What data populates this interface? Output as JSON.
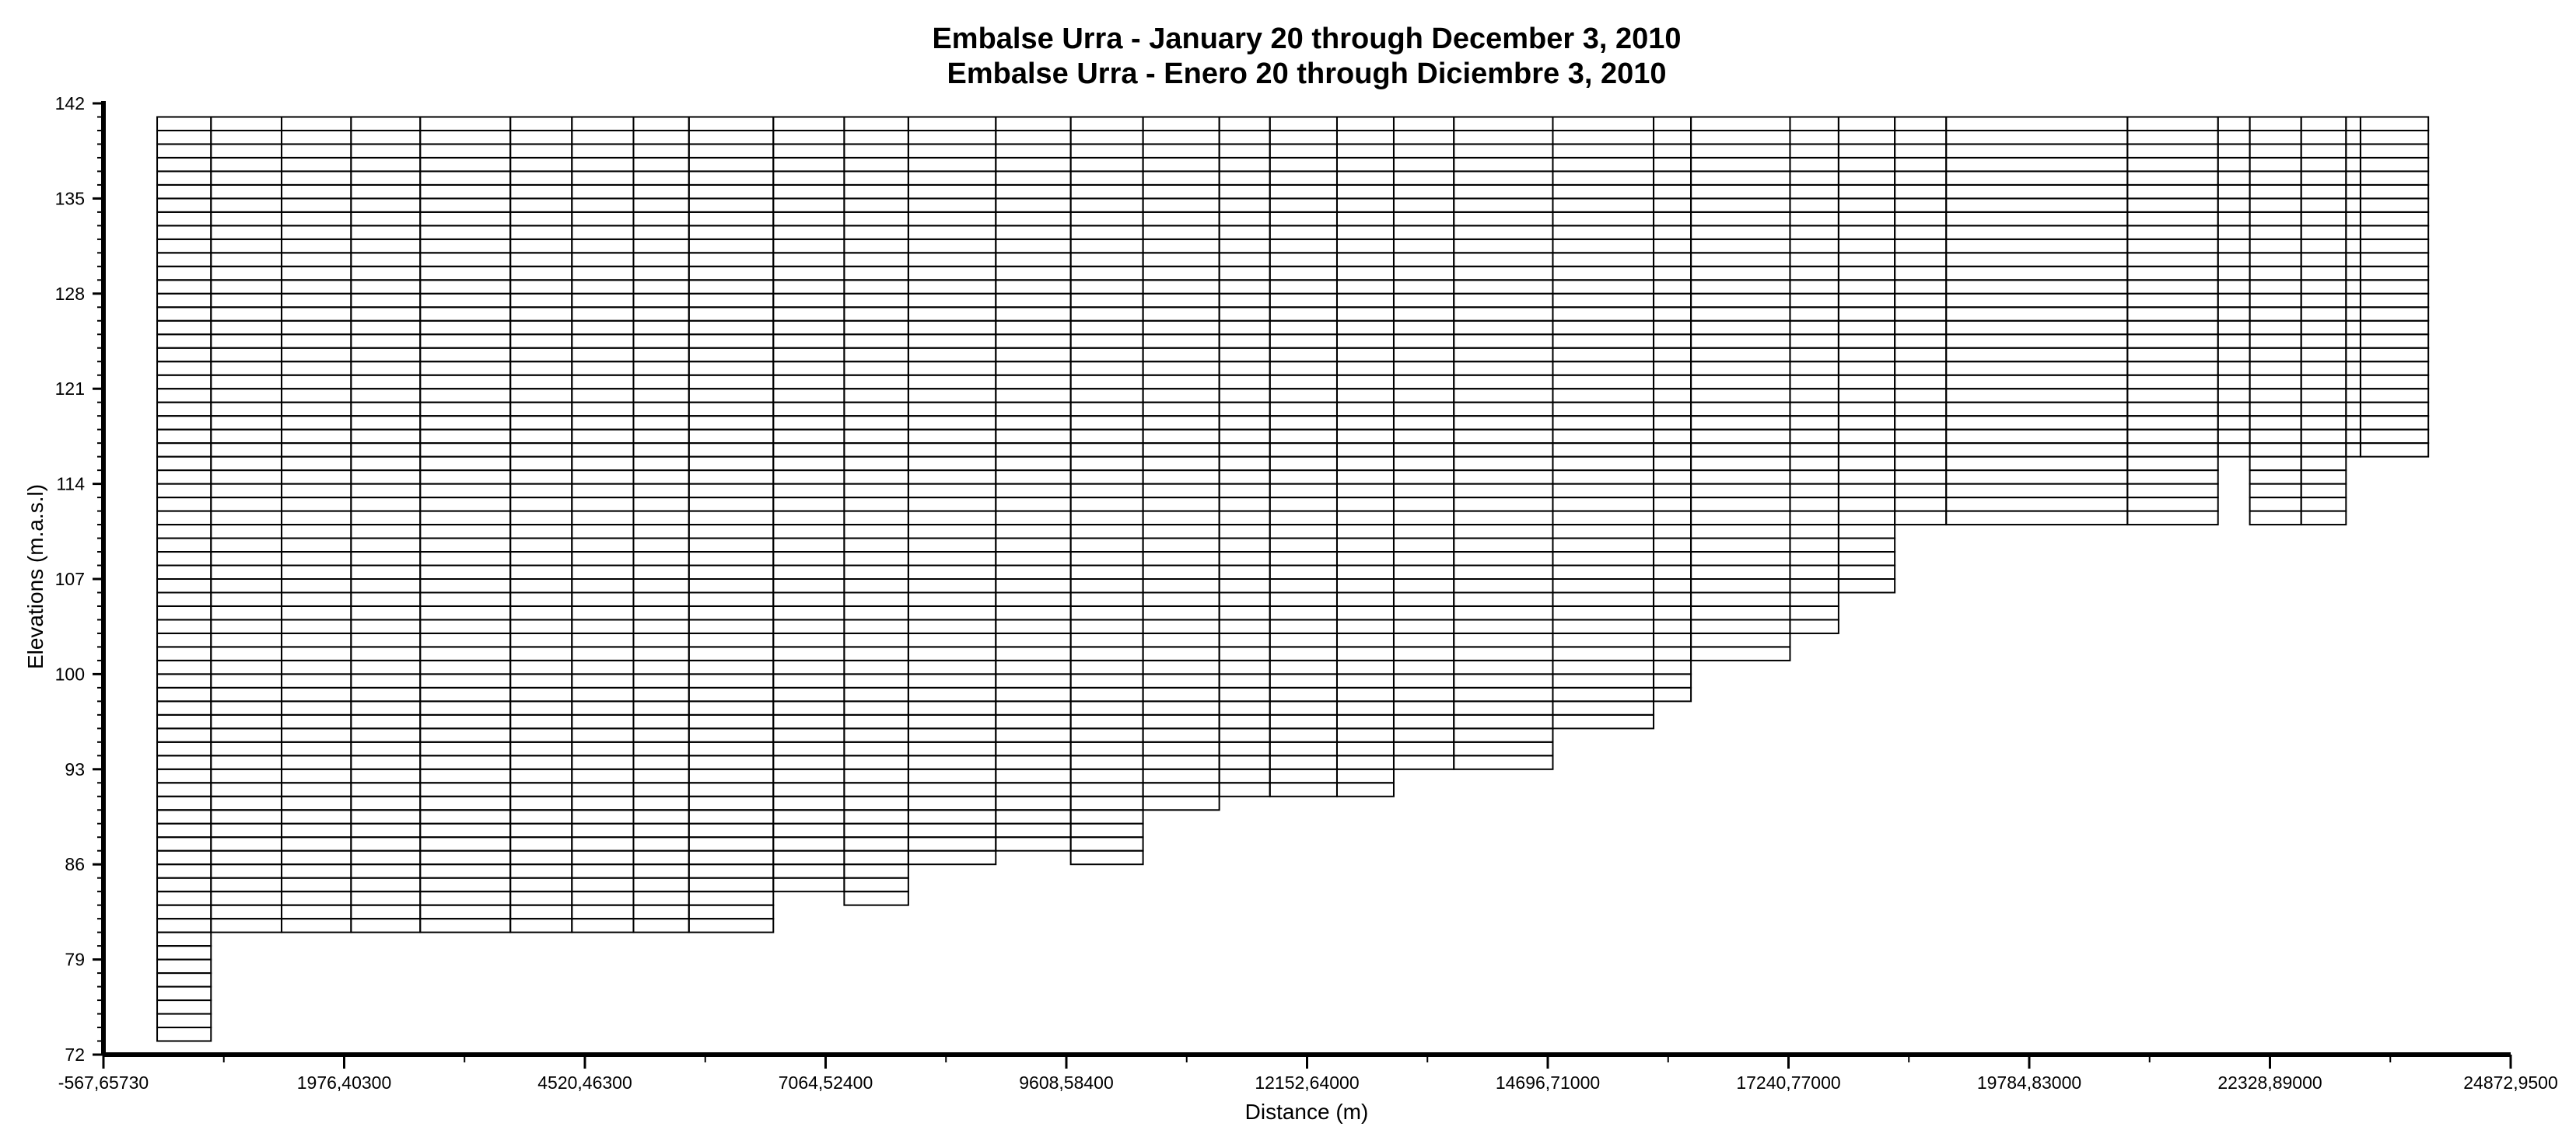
{
  "chart_data": {
    "type": "bar",
    "title": "Embalse Urra - January 20 through December 3, 2010",
    "subtitle": "Embalse Urra - Enero 20 through Diciembre 3, 2010",
    "xlabel": "Distance (m)",
    "ylabel": "Elevations (m.a.s.l)",
    "xlim": [
      -567.6573,
      24872.95
    ],
    "ylim": [
      72,
      142
    ],
    "x_tick_labels": [
      "-567,65730",
      "1976,40300",
      "4520,46300",
      "7064,52400",
      "9608,58400",
      "12152,64000",
      "14696,71000",
      "17240,77000",
      "19784,83000",
      "22328,89000",
      "24872,9500"
    ],
    "x_ticks": [
      -567.6573,
      1976.403,
      4520.463,
      7064.524,
      9608.584,
      12152.64,
      14696.71,
      17240.77,
      19784.83,
      22328.89,
      24872.95
    ],
    "y_ticks": [
      142,
      135,
      128,
      121,
      114,
      107,
      100,
      93,
      86,
      79,
      72
    ],
    "top_elevation": 141,
    "layer_thickness": 1,
    "grid": false,
    "legend": "none",
    "segments": [
      {
        "x_start": 0,
        "x_end": 569,
        "bottom": 73
      },
      {
        "x_start": 569,
        "x_end": 1315,
        "bottom": 81
      },
      {
        "x_start": 1315,
        "x_end": 2049,
        "bottom": 81
      },
      {
        "x_start": 2049,
        "x_end": 2780,
        "bottom": 81
      },
      {
        "x_start": 2780,
        "x_end": 3733,
        "bottom": 81
      },
      {
        "x_start": 3733,
        "x_end": 4383,
        "bottom": 81
      },
      {
        "x_start": 4383,
        "x_end": 5034,
        "bottom": 81
      },
      {
        "x_start": 5034,
        "x_end": 5620,
        "bottom": 81
      },
      {
        "x_start": 5620,
        "x_end": 6512,
        "bottom": 81
      },
      {
        "x_start": 6512,
        "x_end": 7261,
        "bottom": 84
      },
      {
        "x_start": 7261,
        "x_end": 7939,
        "bottom": 83
      },
      {
        "x_start": 7939,
        "x_end": 8863,
        "bottom": 86
      },
      {
        "x_start": 8863,
        "x_end": 9655,
        "bottom": 87
      },
      {
        "x_start": 9655,
        "x_end": 10419,
        "bottom": 86
      },
      {
        "x_start": 10419,
        "x_end": 11225,
        "bottom": 90
      },
      {
        "x_start": 11225,
        "x_end": 11760,
        "bottom": 91
      },
      {
        "x_start": 11760,
        "x_end": 12469,
        "bottom": 91
      },
      {
        "x_start": 12469,
        "x_end": 13069,
        "bottom": 91
      },
      {
        "x_start": 13069,
        "x_end": 13704,
        "bottom": 93
      },
      {
        "x_start": 13704,
        "x_end": 14750,
        "bottom": 93
      },
      {
        "x_start": 14750,
        "x_end": 15815,
        "bottom": 96
      },
      {
        "x_start": 15815,
        "x_end": 16210,
        "bottom": 98
      },
      {
        "x_start": 16210,
        "x_end": 17257,
        "bottom": 101
      },
      {
        "x_start": 17257,
        "x_end": 17770,
        "bottom": 103
      },
      {
        "x_start": 17770,
        "x_end": 18364,
        "bottom": 106
      },
      {
        "x_start": 18364,
        "x_end": 18907,
        "bottom": 111
      },
      {
        "x_start": 18907,
        "x_end": 20823,
        "bottom": 111
      },
      {
        "x_start": 20823,
        "x_end": 21780,
        "bottom": 111
      },
      {
        "x_start": 21780,
        "x_end": 22116,
        "bottom": 116
      },
      {
        "x_start": 22116,
        "x_end": 22659,
        "bottom": 111
      },
      {
        "x_start": 22659,
        "x_end": 23133,
        "bottom": 111
      },
      {
        "x_start": 23133,
        "x_end": 23286,
        "bottom": 116
      },
      {
        "x_start": 23286,
        "x_end": 24003,
        "bottom": 116
      }
    ]
  }
}
